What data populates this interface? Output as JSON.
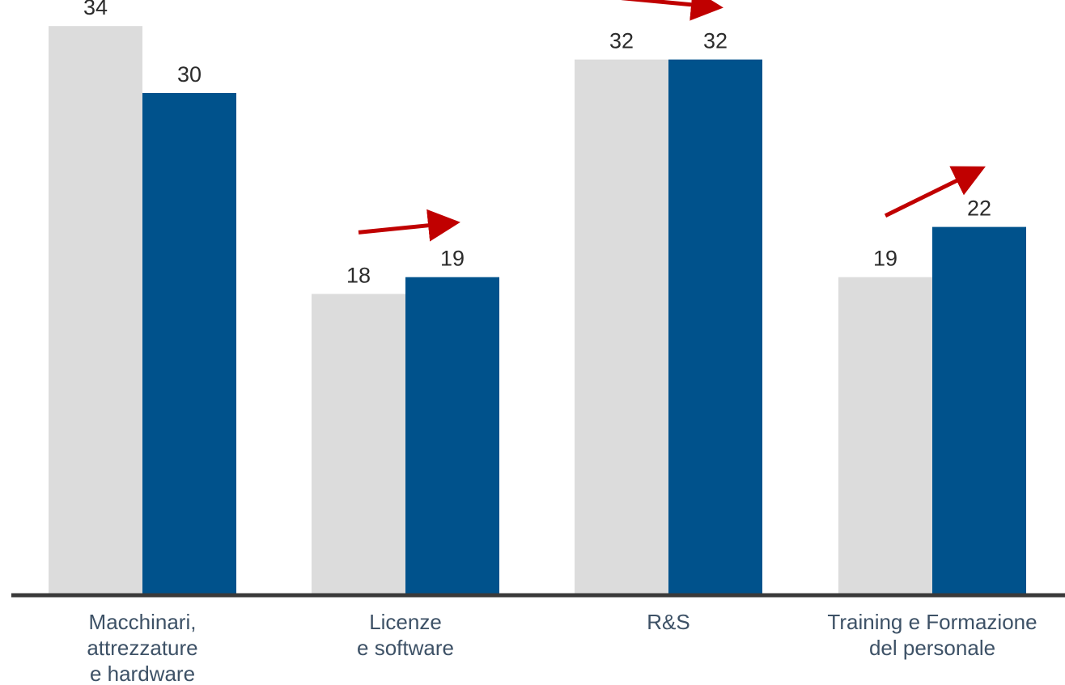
{
  "chart_data": {
    "type": "bar",
    "categories": [
      "Macchinari, attrezzature e hardware",
      "Licenze e software",
      "R&S",
      "Training e Formazione del personale"
    ],
    "category_lines": [
      [
        "Macchinari,",
        "attrezzature",
        "e hardware"
      ],
      [
        "Licenze",
        "e software"
      ],
      [
        "R&S"
      ],
      [
        "Training e Formazione",
        "del personale"
      ]
    ],
    "series": [
      {
        "values": [
          34,
          18,
          32,
          19
        ],
        "color": "#dcdcdc"
      },
      {
        "values": [
          30,
          19,
          32,
          22
        ],
        "color": "#00528c"
      }
    ],
    "data_labels": [
      [
        "34",
        "18",
        "32",
        "19"
      ],
      [
        "30",
        "19",
        "32",
        "22"
      ]
    ],
    "trend_arrows": [
      false,
      true,
      true,
      true
    ],
    "arrow_color": "#c00000",
    "axis_color": "#3a3a3a",
    "title": "",
    "xlabel": "",
    "ylabel": "",
    "grid": false,
    "legend": "none"
  }
}
